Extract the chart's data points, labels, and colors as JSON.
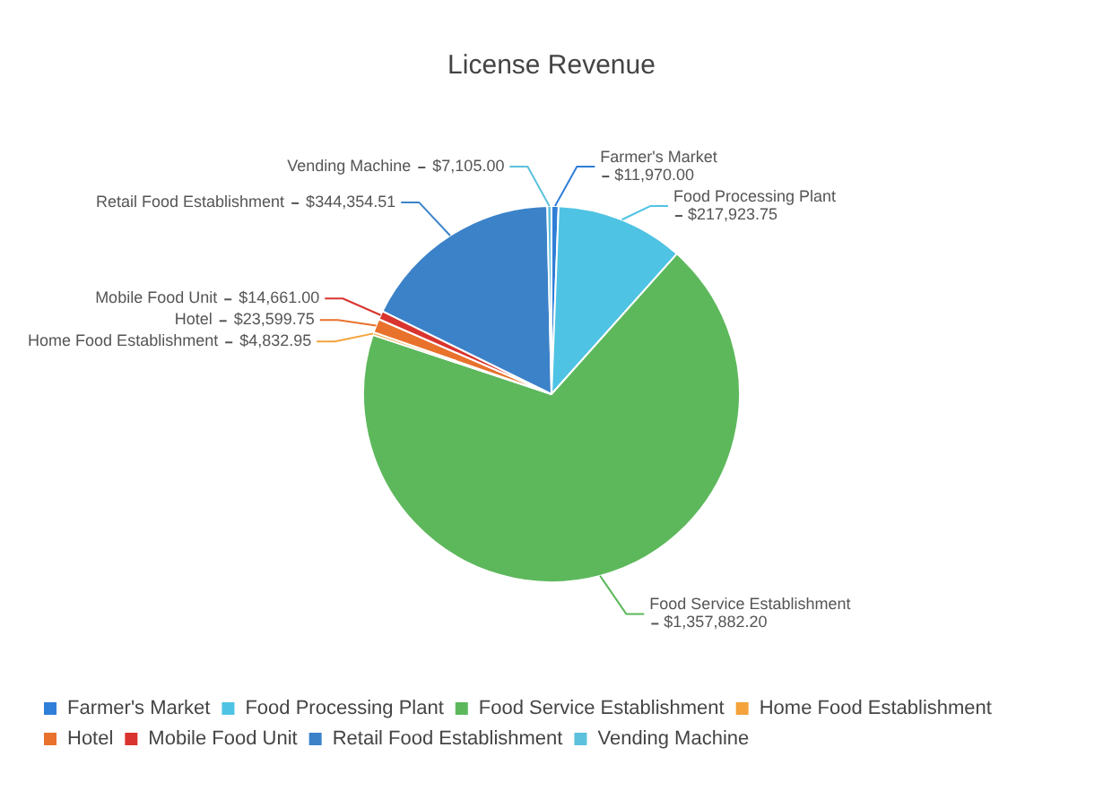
{
  "chart_data": {
    "type": "pie",
    "title": "License Revenue",
    "categories": [
      "Farmer's Market",
      "Food Processing Plant",
      "Food Service Establishment",
      "Home Food Establishment",
      "Hotel",
      "Mobile Food Unit",
      "Retail Food Establishment",
      "Vending Machine"
    ],
    "values": [
      11970.0,
      217923.75,
      1357882.2,
      4832.95,
      23599.75,
      14661.0,
      344354.51,
      7105.0
    ],
    "value_labels": [
      "$11,970.00",
      "$217,923.75",
      "$1,357,882.20",
      "$4,832.95",
      "$23,599.75",
      "$14,661.00",
      "$344,354.51",
      "$7,105.00"
    ],
    "colors": [
      "#2f7ed8",
      "#4fc3e3",
      "#5db85c",
      "#f4a23a",
      "#e8722c",
      "#d9342f",
      "#3b82c9",
      "#5cc1dc"
    ],
    "legend": "bottom"
  }
}
